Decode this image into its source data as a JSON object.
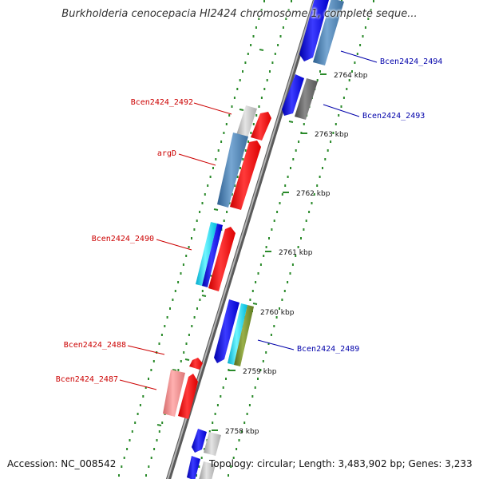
{
  "title": "Burkholderia cenocepacia HI2424 chromosome 1, complete seque...",
  "footer": {
    "accession": "Accession: NC_008542",
    "topology": "Topology: circular; Length: 3,483,902 bp; Genes: 3,233"
  },
  "colors": {
    "backbone": "#888888",
    "forward_label": "#cc0000",
    "reverse_label": "#0000aa",
    "dots": "#2a8a2a",
    "ticks": "#2a8a2a"
  },
  "scale_ticks": [
    "2764 kbp",
    "2763 kbp",
    "2762 kbp",
    "2761 kbp",
    "2760 kbp",
    "2759 kbp",
    "2758 kbp"
  ],
  "gene_labels": [
    {
      "text": "Bcen2424_2494",
      "strand": "reverse"
    },
    {
      "text": "Bcen2424_2493",
      "strand": "reverse"
    },
    {
      "text": "Bcen2424_2492",
      "strand": "forward"
    },
    {
      "text": "argD",
      "strand": "forward"
    },
    {
      "text": "Bcen2424_2490",
      "strand": "forward"
    },
    {
      "text": "Bcen2424_2489",
      "strand": "reverse"
    },
    {
      "text": "Bcen2424_2488",
      "strand": "forward"
    },
    {
      "text": "Bcen2424_2487",
      "strand": "forward"
    }
  ]
}
